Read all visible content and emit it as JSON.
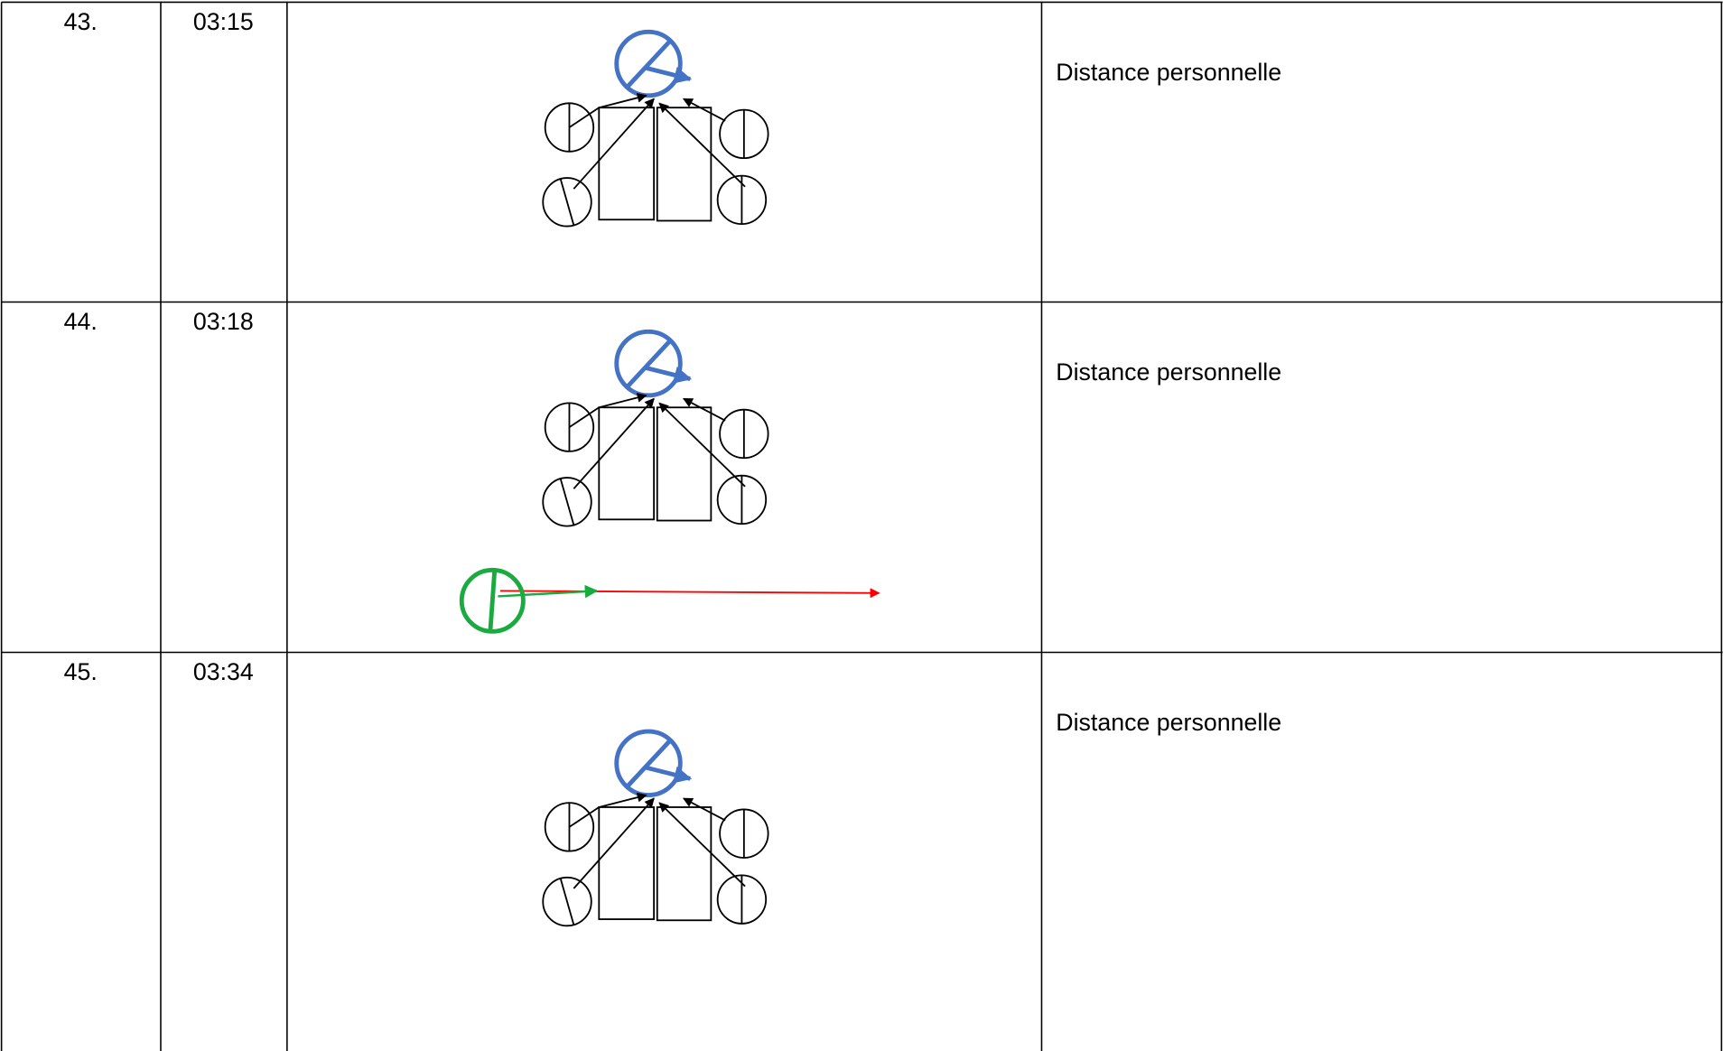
{
  "table": {
    "rows": [
      {
        "number": "43.",
        "time": "03:15",
        "description": "Distance personnelle"
      },
      {
        "number": "44.",
        "time": "03:18",
        "description": "Distance personnelle"
      },
      {
        "number": "45.",
        "time": "03:34",
        "description": "Distance personnelle"
      }
    ]
  }
}
